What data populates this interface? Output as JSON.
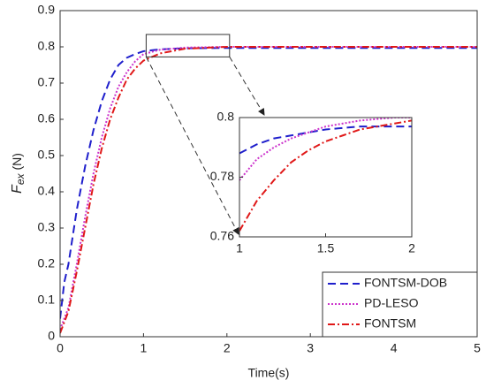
{
  "chart_data": [
    {
      "type": "line",
      "xlabel": "Time(s)",
      "ylabel": {
        "symbol": "F",
        "subscript": "ex",
        "unit": "(N)"
      },
      "x": [
        0,
        0.05,
        0.1,
        0.2,
        0.3,
        0.4,
        0.5,
        0.6,
        0.7,
        0.8,
        0.9,
        1.0,
        1.2,
        1.5,
        2,
        3,
        4,
        5
      ],
      "series": [
        {
          "name": "FONTSM-DOB",
          "color": "#1f1fcc",
          "style": "dashed",
          "values": [
            0.05,
            0.15,
            0.2,
            0.35,
            0.47,
            0.57,
            0.65,
            0.71,
            0.75,
            0.77,
            0.78,
            0.788,
            0.793,
            0.796,
            0.797,
            0.797,
            0.797,
            0.797
          ]
        },
        {
          "name": "PD-LESO",
          "color": "#cc33cc",
          "style": "dotted",
          "values": [
            0.02,
            0.05,
            0.08,
            0.2,
            0.33,
            0.45,
            0.55,
            0.63,
            0.69,
            0.73,
            0.76,
            0.78,
            0.792,
            0.798,
            0.8,
            0.8,
            0.8,
            0.8
          ]
        },
        {
          "name": "FONTSM",
          "color": "#e01818",
          "style": "dashdot",
          "values": [
            0.01,
            0.04,
            0.07,
            0.18,
            0.3,
            0.42,
            0.52,
            0.6,
            0.66,
            0.71,
            0.74,
            0.762,
            0.782,
            0.795,
            0.8,
            0.8,
            0.8,
            0.8
          ]
        }
      ],
      "xlim": [
        0,
        5
      ],
      "xticks": [
        0,
        1,
        2,
        3,
        4,
        5
      ],
      "ylim": [
        0,
        0.9
      ],
      "yticks": [
        0,
        0.1,
        0.2,
        0.3,
        0.4,
        0.5,
        0.6,
        0.7,
        0.8,
        0.9
      ],
      "legend": "lower right"
    },
    {
      "type": "line",
      "x": [
        1,
        1.1,
        1.2,
        1.3,
        1.4,
        1.5,
        1.6,
        1.7,
        1.8,
        1.9,
        2
      ],
      "series": [
        {
          "color": "#1f1fcc",
          "style": "dashed",
          "values": [
            0.788,
            0.791,
            0.793,
            0.794,
            0.795,
            0.796,
            0.7965,
            0.797,
            0.797,
            0.797,
            0.797
          ]
        },
        {
          "color": "#cc33cc",
          "style": "dotted",
          "values": [
            0.779,
            0.786,
            0.79,
            0.793,
            0.795,
            0.797,
            0.798,
            0.799,
            0.7995,
            0.8,
            0.8
          ]
        },
        {
          "color": "#e01818",
          "style": "dashdot",
          "values": [
            0.762,
            0.772,
            0.779,
            0.785,
            0.789,
            0.792,
            0.794,
            0.796,
            0.797,
            0.798,
            0.799
          ]
        }
      ],
      "xlim": [
        1,
        2
      ],
      "xticks": [
        1,
        1.5,
        2
      ],
      "ylim": [
        0.76,
        0.8
      ],
      "yticks": [
        0.76,
        0.78,
        0.8
      ]
    }
  ]
}
